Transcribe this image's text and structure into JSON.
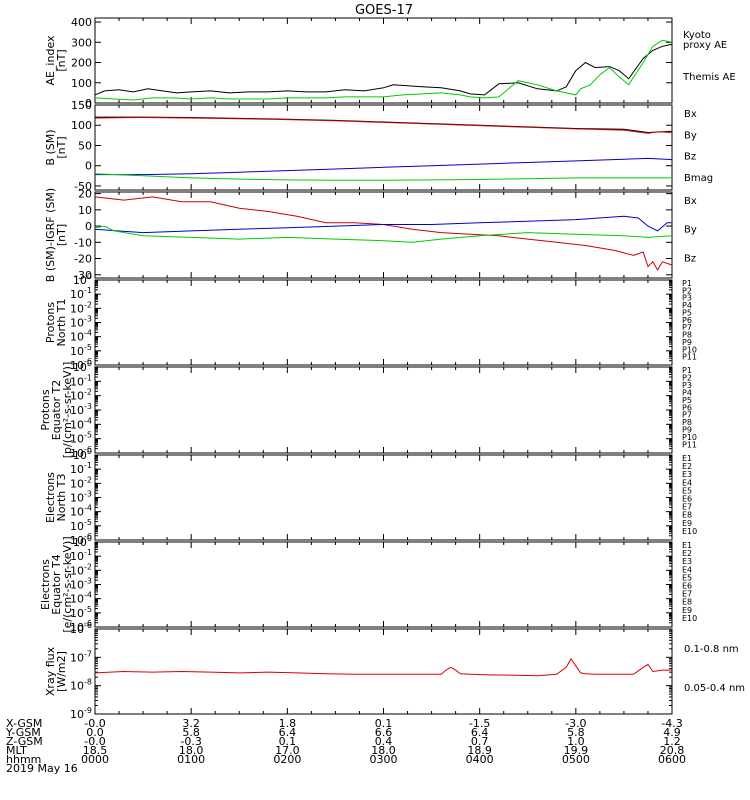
{
  "title": "GOES-17",
  "chart_data": [
    {
      "id": "ae",
      "type": "line",
      "ylabel": [
        "AE_index",
        "[nT]"
      ],
      "ylim": [
        0,
        420
      ],
      "yticks": [
        {
          "v": 0,
          "label": "0"
        },
        {
          "v": 100,
          "label": "100"
        },
        {
          "v": 200,
          "label": "200"
        },
        {
          "v": 300,
          "label": "300"
        },
        {
          "v": 400,
          "label": "400"
        }
      ],
      "legend": [
        {
          "name": "Kyoto",
          "color": "#00cc00"
        },
        {
          "name": "proxy AE",
          "color": "#00cc00"
        },
        {
          "name": "Themis AE",
          "color": "#000000"
        }
      ],
      "series": [
        {
          "name": "Themis AE",
          "color": "#000000",
          "x": [
            0,
            0.1,
            0.25,
            0.4,
            0.55,
            0.7,
            0.85,
            1.0,
            1.2,
            1.4,
            1.6,
            1.8,
            2.0,
            2.2,
            2.4,
            2.6,
            2.8,
            3.0,
            3.1,
            3.25,
            3.4,
            3.6,
            3.8,
            3.9,
            4.05,
            4.2,
            4.4,
            4.6,
            4.8,
            4.9,
            5.0,
            5.1,
            5.2,
            5.35,
            5.45,
            5.55,
            5.7,
            5.8,
            5.9,
            6.0
          ],
          "values": [
            40,
            60,
            65,
            55,
            70,
            60,
            50,
            55,
            60,
            50,
            55,
            55,
            60,
            55,
            55,
            65,
            60,
            75,
            90,
            85,
            80,
            75,
            60,
            45,
            40,
            95,
            100,
            70,
            60,
            80,
            160,
            200,
            175,
            180,
            160,
            120,
            220,
            260,
            280,
            290
          ]
        },
        {
          "name": "Kyoto proxy AE",
          "color": "#00cc00",
          "x": [
            0,
            0.2,
            0.4,
            0.6,
            0.8,
            1.0,
            1.2,
            1.4,
            1.6,
            1.8,
            2.0,
            2.2,
            2.4,
            2.6,
            2.8,
            3.0,
            3.2,
            3.4,
            3.6,
            3.8,
            3.9,
            4.05,
            4.2,
            4.4,
            4.6,
            4.8,
            4.9,
            5.0,
            5.05,
            5.15,
            5.25,
            5.35,
            5.45,
            5.55,
            5.7,
            5.8,
            5.9,
            6.0
          ],
          "values": [
            25,
            20,
            15,
            25,
            25,
            20,
            25,
            20,
            20,
            20,
            25,
            25,
            25,
            30,
            30,
            30,
            40,
            45,
            50,
            40,
            30,
            25,
            30,
            110,
            90,
            60,
            50,
            40,
            70,
            90,
            140,
            175,
            130,
            90,
            200,
            280,
            310,
            300
          ]
        }
      ]
    },
    {
      "id": "bsm",
      "type": "line",
      "ylabel": [
        "B (SM)",
        "[nT]"
      ],
      "ylim": [
        -60,
        150
      ],
      "yticks": [
        {
          "v": -50,
          "label": "-50"
        },
        {
          "v": 0,
          "label": "0"
        },
        {
          "v": 50,
          "label": "50"
        },
        {
          "v": 100,
          "label": "100"
        },
        {
          "v": 150,
          "label": "150"
        }
      ],
      "legend": [
        {
          "name": "Bx",
          "color": "#0000cc"
        },
        {
          "name": "By",
          "color": "#00cc00"
        },
        {
          "name": "Bz",
          "color": "#cc0000"
        },
        {
          "name": "Bmag",
          "color": "#000000"
        }
      ],
      "series": [
        {
          "name": "Bmag",
          "color": "#000000",
          "x": [
            0,
            0.5,
            1.0,
            1.5,
            2.0,
            2.5,
            3.0,
            3.5,
            4.0,
            4.5,
            5.0,
            5.5,
            5.75,
            6.0
          ],
          "values": [
            120,
            120,
            119,
            117,
            115,
            112,
            108,
            104,
            100,
            96,
            92,
            90,
            82,
            85
          ]
        },
        {
          "name": "Bz",
          "color": "#cc0000",
          "x": [
            0,
            0.5,
            1.0,
            1.5,
            2.0,
            2.5,
            3.0,
            3.5,
            4.0,
            4.5,
            5.0,
            5.5,
            5.75,
            5.85,
            6.0
          ],
          "values": [
            118,
            119,
            118,
            116,
            114,
            111,
            107,
            103,
            99,
            95,
            91,
            88,
            80,
            84,
            82
          ]
        },
        {
          "name": "Bx",
          "color": "#0000cc",
          "x": [
            0,
            0.5,
            1.0,
            1.5,
            2.0,
            2.5,
            3.0,
            3.5,
            4.0,
            4.5,
            5.0,
            5.5,
            5.75,
            6.0
          ],
          "values": [
            -22,
            -22,
            -20,
            -16,
            -12,
            -8,
            -4,
            0,
            4,
            8,
            12,
            16,
            18,
            15
          ]
        },
        {
          "name": "By",
          "color": "#00cc00",
          "x": [
            0,
            0.5,
            1.0,
            1.5,
            2.0,
            2.5,
            3.0,
            3.5,
            4.0,
            4.5,
            5.0,
            5.5,
            6.0
          ],
          "values": [
            -20,
            -25,
            -30,
            -33,
            -35,
            -36,
            -36,
            -35,
            -34,
            -32,
            -30,
            -30,
            -30
          ]
        }
      ]
    },
    {
      "id": "bigrf",
      "type": "line",
      "ylabel": [
        "B (SM)-IGRF (SM)",
        "[nT]"
      ],
      "ylim": [
        -32,
        21
      ],
      "yticks": [
        {
          "v": -30,
          "label": "-30"
        },
        {
          "v": -20,
          "label": "-20"
        },
        {
          "v": -10,
          "label": "-10"
        },
        {
          "v": 0,
          "label": "0"
        },
        {
          "v": 10,
          "label": "10"
        },
        {
          "v": 20,
          "label": "20"
        }
      ],
      "legend": [
        {
          "name": "Bx",
          "color": "#0000cc"
        },
        {
          "name": "By",
          "color": "#00cc00"
        },
        {
          "name": "Bz",
          "color": "#cc0000"
        }
      ],
      "series": [
        {
          "name": "Bz",
          "color": "#cc0000",
          "x": [
            0,
            0.3,
            0.6,
            0.9,
            1.2,
            1.5,
            1.8,
            2.1,
            2.4,
            2.7,
            3.0,
            3.3,
            3.6,
            3.9,
            4.2,
            4.5,
            4.8,
            5.1,
            5.4,
            5.6,
            5.7,
            5.75,
            5.8,
            5.85,
            5.9,
            6.0
          ],
          "values": [
            18,
            16,
            18,
            15,
            15,
            11,
            9,
            6,
            2,
            2,
            1,
            -2,
            -4,
            -5,
            -6,
            -8,
            -10,
            -12,
            -15,
            -18,
            -16,
            -25,
            -22,
            -27,
            -22,
            -24
          ]
        },
        {
          "name": "Bx",
          "color": "#0000cc",
          "x": [
            0,
            0.5,
            1.0,
            1.5,
            2.0,
            2.5,
            3.0,
            3.5,
            4.0,
            4.5,
            5.0,
            5.5,
            5.65,
            5.75,
            5.85,
            5.95,
            6.0
          ],
          "values": [
            -2,
            -4,
            -3,
            -2,
            -1,
            0,
            1,
            1,
            2,
            3,
            4,
            6,
            5,
            0,
            -3,
            2,
            2
          ]
        },
        {
          "name": "By",
          "color": "#00cc00",
          "x": [
            0,
            0.1,
            0.2,
            0.5,
            1.0,
            1.5,
            2.0,
            2.5,
            3.0,
            3.3,
            3.6,
            4.0,
            4.5,
            5.0,
            5.5,
            5.75,
            6.0
          ],
          "values": [
            -1,
            0,
            -3,
            -6,
            -7,
            -8,
            -7,
            -8,
            -9,
            -10,
            -8,
            -6,
            -4,
            -5,
            -6,
            -7,
            -6
          ]
        }
      ]
    },
    {
      "id": "p1",
      "type": "line",
      "ylabel": [
        "Protons",
        "North T1"
      ],
      "log": true,
      "ylim_exp": [
        -6,
        0
      ],
      "legend": [
        {
          "name": "P1",
          "color": "#000000"
        },
        {
          "name": "P2",
          "color": "#660099"
        },
        {
          "name": "P3",
          "color": "#0000cc"
        },
        {
          "name": "P4",
          "color": "#0066ff"
        },
        {
          "name": "P5",
          "color": "#00aaff"
        },
        {
          "name": "P6",
          "color": "#00cc99"
        },
        {
          "name": "P7",
          "color": "#ccdd00"
        },
        {
          "name": "P8",
          "color": "#ffcc00"
        },
        {
          "name": "P9",
          "color": "#ff8800"
        },
        {
          "name": "P10",
          "color": "#dd0000"
        },
        {
          "name": "P11",
          "color": "#990000"
        }
      ]
    },
    {
      "id": "p2",
      "type": "line",
      "ylabel": [
        "Protons",
        "Equator T2",
        "[p/(cm²-s-sr-keV)]"
      ],
      "log": true,
      "ylim_exp": [
        -6,
        0
      ],
      "legend": [
        {
          "name": "P1",
          "color": "#000000"
        },
        {
          "name": "P2",
          "color": "#660099"
        },
        {
          "name": "P3",
          "color": "#0000cc"
        },
        {
          "name": "P4",
          "color": "#0066ff"
        },
        {
          "name": "P5",
          "color": "#00aaff"
        },
        {
          "name": "P6",
          "color": "#00cc99"
        },
        {
          "name": "P7",
          "color": "#ccdd00"
        },
        {
          "name": "P8",
          "color": "#ffcc00"
        },
        {
          "name": "P9",
          "color": "#ff8800"
        },
        {
          "name": "P10",
          "color": "#dd0000"
        },
        {
          "name": "P11",
          "color": "#990000"
        }
      ]
    },
    {
      "id": "e1",
      "type": "line",
      "ylabel": [
        "Electrons",
        "North T3"
      ],
      "log": true,
      "ylim_exp": [
        -6,
        0
      ],
      "legend": [
        {
          "name": "E1",
          "color": "#000000"
        },
        {
          "name": "E2",
          "color": "#660099"
        },
        {
          "name": "E3",
          "color": "#0000cc"
        },
        {
          "name": "E4",
          "color": "#0066ff"
        },
        {
          "name": "E5",
          "color": "#00aaff"
        },
        {
          "name": "E6",
          "color": "#00cc99"
        },
        {
          "name": "E7",
          "color": "#ccdd00"
        },
        {
          "name": "E8",
          "color": "#ffcc00"
        },
        {
          "name": "E9",
          "color": "#dd0000"
        },
        {
          "name": "E10",
          "color": "#990000"
        }
      ]
    },
    {
      "id": "e2",
      "type": "line",
      "ylabel": [
        "Electrons",
        "Equator T4",
        "[e/(cm²-s-sr-keV)]"
      ],
      "log": true,
      "ylim_exp": [
        -6,
        0
      ],
      "legend": [
        {
          "name": "E1",
          "color": "#000000"
        },
        {
          "name": "E2",
          "color": "#660099"
        },
        {
          "name": "E3",
          "color": "#0000cc"
        },
        {
          "name": "E4",
          "color": "#0066ff"
        },
        {
          "name": "E5",
          "color": "#00aaff"
        },
        {
          "name": "E6",
          "color": "#00cc99"
        },
        {
          "name": "E7",
          "color": "#ccdd00"
        },
        {
          "name": "E8",
          "color": "#ffcc00"
        },
        {
          "name": "E9",
          "color": "#dd0000"
        },
        {
          "name": "E10",
          "color": "#990000"
        }
      ]
    },
    {
      "id": "xray",
      "type": "line",
      "ylabel": [
        "Xray flux",
        "[W/m2]"
      ],
      "log": true,
      "ylim_exp": [
        -9,
        -6
      ],
      "legend": [
        {
          "name": "0.1-0.8 nm",
          "color": "#dd0000"
        },
        {
          "name": "0.05-0.4 nm",
          "color": "#0000cc"
        }
      ],
      "series": [
        {
          "name": "0.1-0.8 nm",
          "color": "#dd0000",
          "x": [
            0,
            0.3,
            0.6,
            0.9,
            1.2,
            1.5,
            1.8,
            2.1,
            2.4,
            2.7,
            3.0,
            3.3,
            3.6,
            3.65,
            3.7,
            3.75,
            3.8,
            3.9,
            4.1,
            4.4,
            4.6,
            4.8,
            4.9,
            4.95,
            5.0,
            5.05,
            5.1,
            5.2,
            5.4,
            5.6,
            5.7,
            5.75,
            5.8,
            5.9,
            6.0
          ],
          "exponents": [
            -7.55,
            -7.5,
            -7.52,
            -7.5,
            -7.52,
            -7.55,
            -7.52,
            -7.55,
            -7.58,
            -7.6,
            -7.6,
            -7.6,
            -7.6,
            -7.45,
            -7.35,
            -7.45,
            -7.58,
            -7.6,
            -7.62,
            -7.63,
            -7.65,
            -7.6,
            -7.35,
            -7.05,
            -7.3,
            -7.55,
            -7.58,
            -7.6,
            -7.6,
            -7.6,
            -7.35,
            -7.25,
            -7.5,
            -7.45,
            -7.45
          ]
        }
      ]
    }
  ],
  "x_axis": {
    "range": [
      0,
      6
    ],
    "row_labels": [
      "X-GSM",
      "Y-GSM",
      "Z-GSM",
      "MLT",
      "hhmm",
      "2019 May 16"
    ],
    "columns": [
      {
        "x": 0,
        "vals": [
          "-0.0",
          "0.0",
          "-0.0",
          "18.5",
          "0000"
        ]
      },
      {
        "x": 1,
        "vals": [
          "3.2",
          "5.8",
          "-0.3",
          "18.0",
          "0100"
        ]
      },
      {
        "x": 2,
        "vals": [
          "1.8",
          "6.4",
          "0.1",
          "17.0",
          "0200"
        ]
      },
      {
        "x": 3,
        "vals": [
          "0.1",
          "6.6",
          "0.4",
          "18.0",
          "0300"
        ]
      },
      {
        "x": 4,
        "vals": [
          "-1.5",
          "6.4",
          "0.7",
          "18.9",
          "0400"
        ]
      },
      {
        "x": 5,
        "vals": [
          "-3.0",
          "5.8",
          "1.0",
          "19.9",
          "0500"
        ]
      },
      {
        "x": 6,
        "vals": [
          "-4.3",
          "4.9",
          "1.2",
          "20.8",
          "0600"
        ]
      }
    ]
  }
}
